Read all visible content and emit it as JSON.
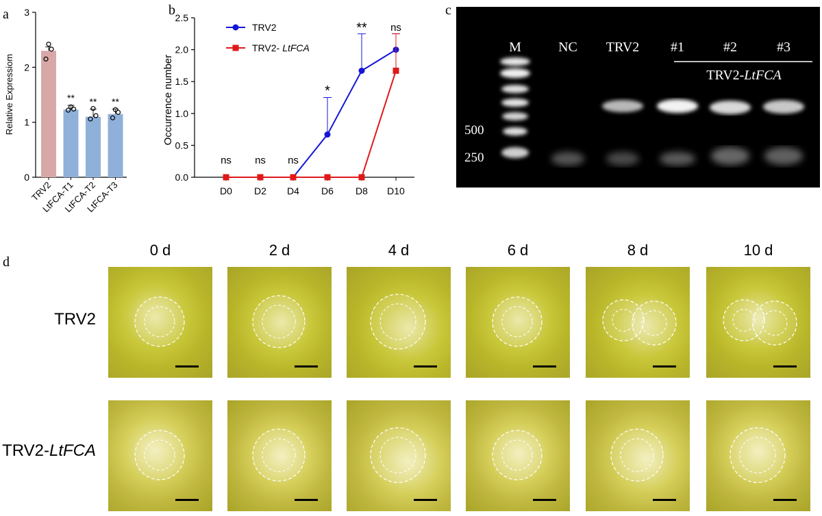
{
  "panels": {
    "a": "a",
    "b": "b",
    "c": "c",
    "d": "d"
  },
  "colors": {
    "bar_trv2": "#d8a8a8",
    "bar_fca": "#8fb1d9",
    "trv2_line": "#1515d8",
    "fca_line": "#e01818"
  },
  "chart_data": [
    {
      "type": "bar",
      "panel": "a",
      "ylabel": "Relative Expressiom",
      "ylim": [
        0,
        3
      ],
      "yticks": [
        0,
        1,
        2,
        3
      ],
      "categories": [
        "TRV2",
        "LtFCA-T1",
        "LtFCA-T2",
        "LtFCA-T3"
      ],
      "values": [
        2.3,
        1.23,
        1.1,
        1.15
      ],
      "errors": [
        0.07,
        0.08,
        0.14,
        0.09
      ],
      "points": [
        [
          2.15,
          2.33,
          2.42
        ],
        [
          1.22,
          1.24,
          1.28
        ],
        [
          1.06,
          1.12,
          1.25
        ],
        [
          1.08,
          1.18,
          1.23
        ]
      ],
      "significance": [
        "",
        "**",
        "**",
        "**"
      ]
    },
    {
      "type": "line",
      "panel": "b",
      "ylabel": "Occurrence number",
      "ylim": [
        0,
        2.5
      ],
      "yticks": [
        "0.0",
        "0.5",
        "1.0",
        "1.5",
        "2.0",
        "2.5"
      ],
      "x": [
        "D0",
        "D2",
        "D4",
        "D6",
        "D8",
        "D10"
      ],
      "series": [
        {
          "name": "TRV2",
          "values": [
            0,
            0,
            0,
            0.67,
            1.67,
            2.0
          ],
          "errors": [
            0,
            0,
            0,
            0.58,
            0.58,
            0.25
          ]
        },
        {
          "name": "TRV2- LtFCA",
          "values": [
            0,
            0,
            0,
            0,
            0,
            1.67
          ],
          "errors": [
            0,
            0,
            0,
            0,
            0,
            0.58
          ]
        }
      ],
      "significance": [
        "ns",
        "ns",
        "ns",
        "*",
        "**",
        "ns"
      ],
      "legend": "top-left"
    }
  ],
  "gel": {
    "lanes": [
      "M",
      "NC",
      "TRV2",
      "#1",
      "#2",
      "#3"
    ],
    "group_label_prefix": "TRV2-",
    "group_label_italic": "LtFCA",
    "marker_sizes": [
      "500",
      "250"
    ]
  },
  "micro": {
    "days": [
      "0 d",
      "2 d",
      "4 d",
      "6 d",
      "8 d",
      "10 d"
    ],
    "row1": "TRV2",
    "row2_prefix": "TRV2-",
    "row2_italic": "LtFCA"
  }
}
